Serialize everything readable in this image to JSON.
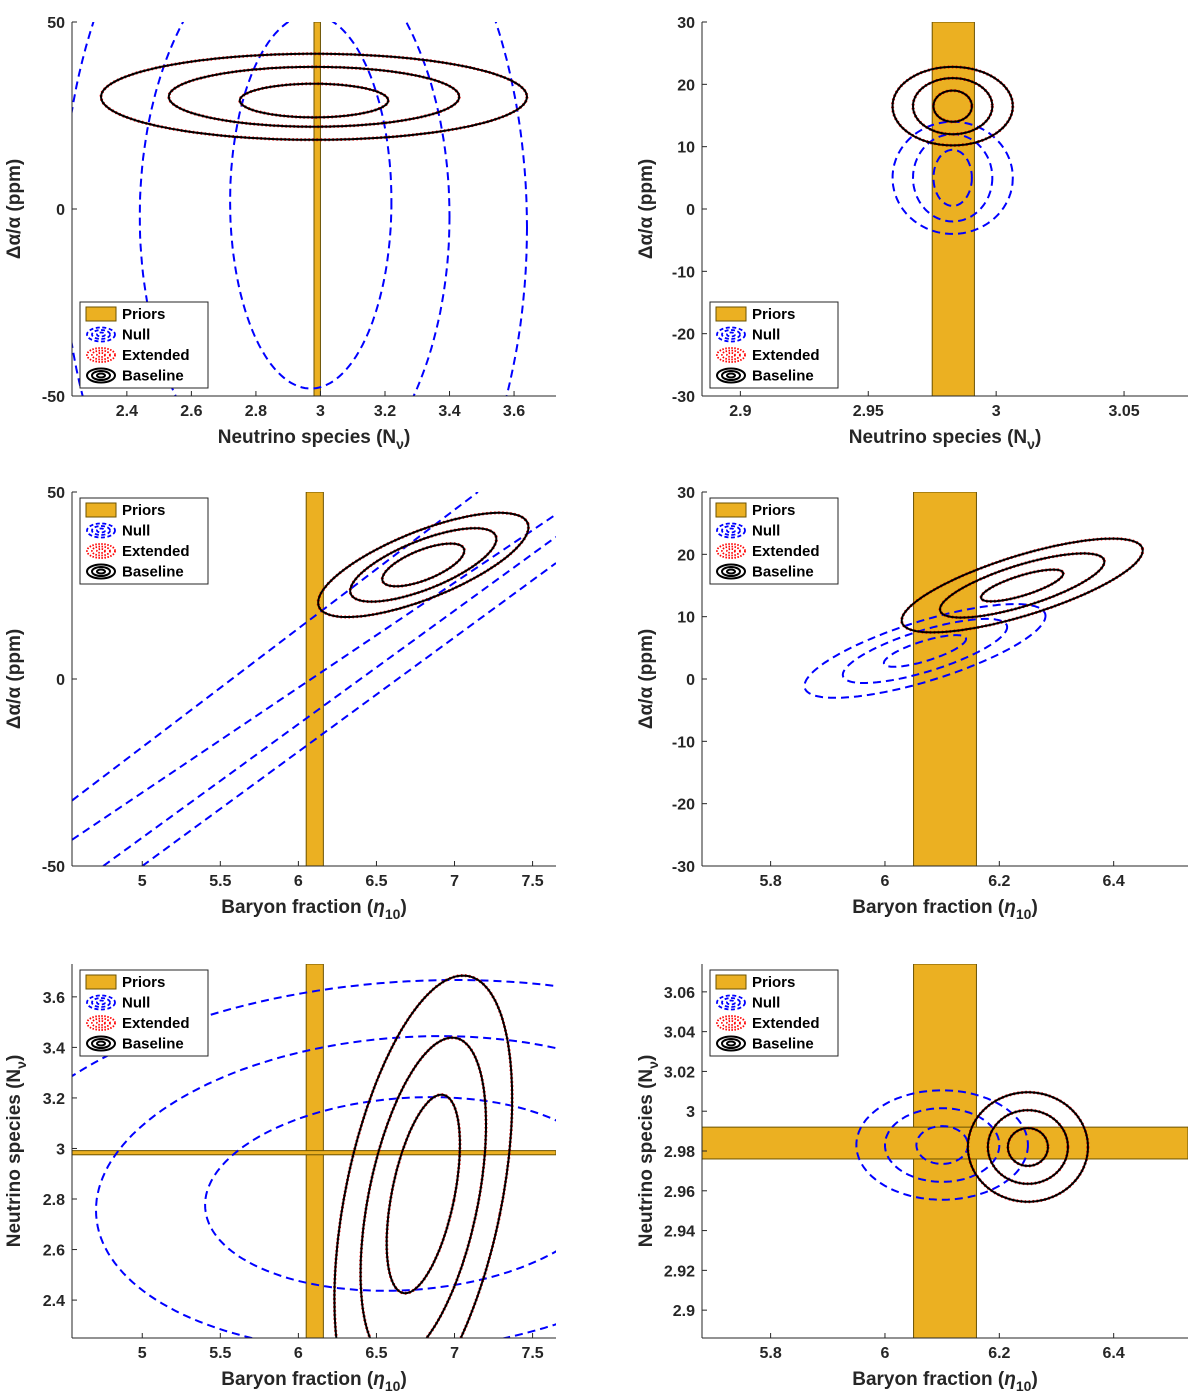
{
  "colors": {
    "priors_fill": "#ebb022",
    "priors_edge": "#6b5200",
    "null": "#0000ff",
    "extended": "#ff0000",
    "baseline": "#000000",
    "axis": "#262626"
  },
  "legend_entries": [
    {
      "key": "priors",
      "label": "Priors"
    },
    {
      "key": "null",
      "label": "Null"
    },
    {
      "key": "extended",
      "label": "Extended"
    },
    {
      "key": "baseline",
      "label": "Baseline"
    }
  ],
  "chart_data": [
    {
      "type": "contour",
      "panel": "top-left",
      "xlabel": "Neutrino species (N",
      "xlabel_sub": "ν",
      "xlabel_tail": ")",
      "ylabel": "Δα/α (ppm)",
      "xlim": [
        2.23,
        3.73
      ],
      "ylim": [
        -50,
        50
      ],
      "xticks": [
        2.4,
        2.6,
        2.8,
        3,
        3.2,
        3.4,
        3.6
      ],
      "xticklabels": [
        "2.4",
        "2.6",
        "2.8",
        "3",
        "3.2",
        "3.4",
        "3.6"
      ],
      "yticks": [
        -50,
        0,
        50
      ],
      "yticklabels": [
        "-50",
        "0",
        "50"
      ],
      "legend_location": "lower-left",
      "priors": [
        {
          "x": [
            2.98,
            3.0
          ],
          "y": [
            -50,
            50
          ]
        }
      ],
      "baseline": [
        {
          "cx": 2.98,
          "cy": 29,
          "rx": 0.23,
          "ry": 4.5,
          "theta": 0
        },
        {
          "cx": 2.98,
          "cy": 30,
          "rx": 0.45,
          "ry": 8,
          "theta": 0
        },
        {
          "cx": 2.98,
          "cy": 30,
          "rx": 0.66,
          "ry": 11.5,
          "theta": 0
        }
      ],
      "null": [
        {
          "cx": 2.97,
          "cy": 2,
          "rx": 0.25,
          "ry": 50,
          "theta": 0
        },
        {
          "cx": 2.92,
          "cy": -2,
          "rx": 0.48,
          "ry": 75,
          "theta": 0
        },
        {
          "cx": 2.92,
          "cy": -5,
          "rx": 0.72,
          "ry": 110,
          "theta": 0
        }
      ]
    },
    {
      "type": "contour",
      "panel": "top-right",
      "xlabel": "Neutrino species (N",
      "xlabel_sub": "ν",
      "xlabel_tail": ")",
      "ylabel": "Δα/α (ppm)",
      "xlim": [
        2.885,
        3.075
      ],
      "ylim": [
        -30,
        30
      ],
      "xticks": [
        2.9,
        2.95,
        3,
        3.05
      ],
      "xticklabels": [
        "2.9",
        "2.95",
        "3",
        "3.05"
      ],
      "yticks": [
        -30,
        -20,
        -10,
        0,
        10,
        20,
        30
      ],
      "yticklabels": [
        "-30",
        "-20",
        "-10",
        "0",
        "10",
        "20",
        "30"
      ],
      "legend_location": "lower-left",
      "priors": [
        {
          "x": [
            2.975,
            2.9915
          ],
          "y": [
            -30,
            30
          ]
        }
      ],
      "baseline": [
        {
          "cx": 2.983,
          "cy": 16.5,
          "rx": 0.0075,
          "ry": 2.5,
          "theta": 0
        },
        {
          "cx": 2.983,
          "cy": 16.5,
          "rx": 0.0155,
          "ry": 4.5,
          "theta": 0
        },
        {
          "cx": 2.983,
          "cy": 16.5,
          "rx": 0.0235,
          "ry": 6.3,
          "theta": 0
        }
      ],
      "null": [
        {
          "cx": 2.983,
          "cy": 5,
          "rx": 0.0075,
          "ry": 4.5,
          "theta": 0
        },
        {
          "cx": 2.983,
          "cy": 5,
          "rx": 0.0155,
          "ry": 7,
          "theta": 0
        },
        {
          "cx": 2.983,
          "cy": 5,
          "rx": 0.0235,
          "ry": 9,
          "theta": 0
        }
      ]
    },
    {
      "type": "contour",
      "panel": "middle-left",
      "xlabel": "Baryon fraction (",
      "xlabel_sub": "10",
      "xlabel_eta": "η",
      "xlabel_tail": ")",
      "ylabel": "Δα/α (ppm)",
      "xlim": [
        4.55,
        7.65
      ],
      "ylim": [
        -50,
        50
      ],
      "xticks": [
        5,
        5.5,
        6,
        6.5,
        7,
        7.5
      ],
      "xticklabels": [
        "5",
        "5.5",
        "6",
        "6.5",
        "7",
        "7.5"
      ],
      "yticks": [
        -50,
        0,
        50
      ],
      "yticklabels": [
        "-50",
        "0",
        "50"
      ],
      "legend_location": "top-left",
      "priors": [
        {
          "x": [
            6.05,
            6.16
          ],
          "y": [
            -50,
            50
          ]
        }
      ],
      "baseline": [
        {
          "cx": 6.8,
          "cy": 30.5,
          "rx": 0.28,
          "ry": 4,
          "theta": 0.38
        },
        {
          "cx": 6.8,
          "cy": 30.5,
          "rx": 0.5,
          "ry": 6.5,
          "theta": 0.38
        },
        {
          "cx": 6.8,
          "cy": 30.5,
          "rx": 0.72,
          "ry": 9,
          "theta": 0.38
        }
      ],
      "null_bands": [
        {
          "x": [
            4.55,
            7.15
          ],
          "y": [
            -32.5,
            50
          ]
        },
        {
          "x": [
            4.55,
            7.65
          ],
          "y": [
            -43,
            44
          ]
        },
        {
          "x": [
            4.75,
            7.65
          ],
          "y": [
            -50,
            38
          ]
        },
        {
          "x": [
            5.0,
            7.65
          ],
          "y": [
            -50,
            31
          ]
        }
      ]
    },
    {
      "type": "contour",
      "panel": "middle-right",
      "xlabel": "Baryon fraction (",
      "xlabel_sub": "10",
      "xlabel_eta": "η",
      "xlabel_tail": ")",
      "ylabel": "Δα/α (ppm)",
      "xlim": [
        5.68,
        6.53
      ],
      "ylim": [
        -30,
        30
      ],
      "xticks": [
        5.8,
        6,
        6.2,
        6.4
      ],
      "xticklabels": [
        "5.8",
        "6",
        "6.2",
        "6.4"
      ],
      "yticks": [
        -30,
        -20,
        -10,
        0,
        10,
        20,
        30
      ],
      "yticklabels": [
        "-30",
        "-20",
        "-10",
        "0",
        "10",
        "20",
        "30"
      ],
      "legend_location": "top-left",
      "priors": [
        {
          "x": [
            6.05,
            6.16
          ],
          "y": [
            -30,
            30
          ]
        }
      ],
      "baseline": [
        {
          "cx": 6.24,
          "cy": 15,
          "rx": 0.075,
          "ry": 1.6,
          "theta": 0.3
        },
        {
          "cx": 6.24,
          "cy": 15,
          "rx": 0.15,
          "ry": 3.3,
          "theta": 0.3
        },
        {
          "cx": 6.24,
          "cy": 15,
          "rx": 0.22,
          "ry": 4.8,
          "theta": 0.3
        }
      ],
      "null": [
        {
          "cx": 6.07,
          "cy": 4.5,
          "rx": 0.075,
          "ry": 1.6,
          "theta": 0.3
        },
        {
          "cx": 6.07,
          "cy": 4.5,
          "rx": 0.15,
          "ry": 3.3,
          "theta": 0.3
        },
        {
          "cx": 6.07,
          "cy": 4.5,
          "rx": 0.22,
          "ry": 4.8,
          "theta": 0.3
        }
      ]
    },
    {
      "type": "contour",
      "panel": "bottom-left",
      "xlabel": "Baryon fraction (",
      "xlabel_sub": "10",
      "xlabel_eta": "η",
      "xlabel_tail": ")",
      "ylabel": "Neutrino species (N",
      "ylabel_sub": "ν",
      "ylabel_tail": ")",
      "xlim": [
        4.55,
        7.65
      ],
      "ylim": [
        2.25,
        3.73
      ],
      "xticks": [
        5,
        5.5,
        6,
        6.5,
        7,
        7.5
      ],
      "xticklabels": [
        "5",
        "5.5",
        "6",
        "6.5",
        "7",
        "7.5"
      ],
      "yticks": [
        2.4,
        2.6,
        2.8,
        3,
        3.2,
        3.4,
        3.6
      ],
      "yticklabels": [
        "2.4",
        "2.6",
        "2.8",
        "3",
        "3.2",
        "3.4",
        "3.6"
      ],
      "legend_location": "top-left",
      "priors": [
        {
          "x": [
            6.05,
            6.16
          ],
          "y": [
            2.25,
            3.73
          ]
        },
        {
          "x": [
            4.55,
            7.65
          ],
          "y": [
            2.975,
            2.9915
          ]
        }
      ],
      "baseline": [
        {
          "cx": 6.8,
          "cy": 2.82,
          "rx": 0.2,
          "ry": 0.4,
          "theta": -0.2
        },
        {
          "cx": 6.8,
          "cy": 2.8,
          "rx": 0.35,
          "ry": 0.65,
          "theta": -0.2
        },
        {
          "cx": 6.8,
          "cy": 2.8,
          "rx": 0.5,
          "ry": 0.9,
          "theta": -0.2
        }
      ],
      "null": [
        {
          "cx": 6.7,
          "cy": 2.82,
          "rx": 1.3,
          "ry": 0.38,
          "theta": 0.07
        },
        {
          "cx": 6.7,
          "cy": 2.82,
          "rx": 2.0,
          "ry": 0.62,
          "theta": 0.07
        },
        {
          "cx": 6.7,
          "cy": 2.82,
          "rx": 2.8,
          "ry": 0.84,
          "theta": 0.07
        }
      ]
    },
    {
      "type": "contour",
      "panel": "bottom-right",
      "xlabel": "Baryon fraction (",
      "xlabel_sub": "10",
      "xlabel_eta": "η",
      "xlabel_tail": ")",
      "ylabel": "Neutrino species (N",
      "ylabel_sub": "ν",
      "ylabel_tail": ")",
      "xlim": [
        5.68,
        6.53
      ],
      "ylim": [
        2.886,
        3.074
      ],
      "xticks": [
        5.8,
        6,
        6.2,
        6.4
      ],
      "xticklabels": [
        "5.8",
        "6",
        "6.2",
        "6.4"
      ],
      "yticks": [
        2.9,
        2.92,
        2.94,
        2.96,
        2.98,
        3,
        3.02,
        3.04,
        3.06
      ],
      "yticklabels": [
        "2.9",
        "2.92",
        "2.94",
        "2.96",
        "2.98",
        "3",
        "3.02",
        "3.04",
        "3.06"
      ],
      "legend_location": "top-left",
      "priors": [
        {
          "x": [
            6.05,
            6.16
          ],
          "y": [
            2.886,
            3.074
          ]
        },
        {
          "x": [
            5.68,
            6.53
          ],
          "y": [
            2.976,
            2.992
          ]
        }
      ],
      "baseline": [
        {
          "cx": 6.25,
          "cy": 2.982,
          "rx": 0.035,
          "ry": 0.0095,
          "theta": 0
        },
        {
          "cx": 6.25,
          "cy": 2.982,
          "rx": 0.07,
          "ry": 0.0185,
          "theta": 0
        },
        {
          "cx": 6.25,
          "cy": 2.982,
          "rx": 0.105,
          "ry": 0.0275,
          "theta": 0
        }
      ],
      "null": [
        {
          "cx": 6.1,
          "cy": 2.983,
          "rx": 0.045,
          "ry": 0.0095,
          "theta": 0
        },
        {
          "cx": 6.1,
          "cy": 2.983,
          "rx": 0.1,
          "ry": 0.0185,
          "theta": 0
        },
        {
          "cx": 6.1,
          "cy": 2.983,
          "rx": 0.15,
          "ry": 0.0275,
          "theta": 0
        }
      ]
    }
  ]
}
